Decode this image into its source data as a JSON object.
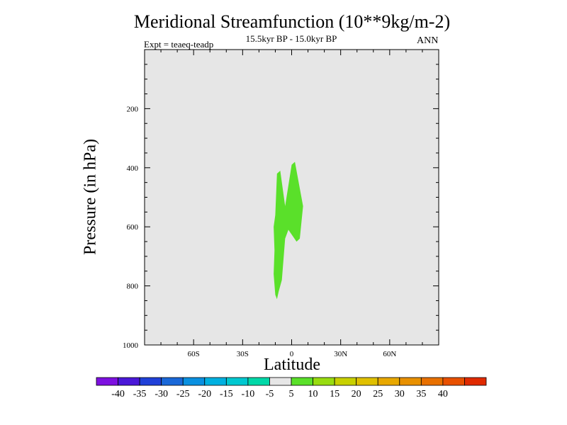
{
  "chart_data": {
    "type": "contour",
    "title": "Meridional Streamfunction (10**9kg/m-2)",
    "subtitle": "15.5kyr BP - 15.0kyr BP",
    "left_annotation": "Expt = teaeq-teadp",
    "right_annotation": "ANN",
    "xlabel": "Latitude",
    "ylabel": "Pressure (in hPa)",
    "xlim": [
      -90,
      90
    ],
    "ylim": [
      1000,
      0
    ],
    "x_tick_labels": [
      {
        "value": -60,
        "label": "60S"
      },
      {
        "value": -30,
        "label": "30S"
      },
      {
        "value": 0,
        "label": "0"
      },
      {
        "value": 30,
        "label": "30N"
      },
      {
        "value": 60,
        "label": "60N"
      }
    ],
    "y_tick_labels": [
      {
        "value": 200,
        "label": "200"
      },
      {
        "value": 400,
        "label": "400"
      },
      {
        "value": 600,
        "label": "600"
      },
      {
        "value": 800,
        "label": "800"
      },
      {
        "value": 1000,
        "label": "1000"
      }
    ],
    "background_color": "#e6e6e6",
    "filled_regions": [
      {
        "level": "5 to 10",
        "color": "#5ae02a",
        "points": [
          [
            -10,
            560
          ],
          [
            -9,
            420
          ],
          [
            -7,
            410
          ],
          [
            -4,
            530
          ],
          [
            0,
            390
          ],
          [
            2,
            380
          ],
          [
            4,
            440
          ],
          [
            7,
            530
          ],
          [
            5,
            640
          ],
          [
            3,
            650
          ],
          [
            -2,
            610
          ],
          [
            -4,
            640
          ],
          [
            -6,
            780
          ],
          [
            -8,
            820
          ],
          [
            -9,
            845
          ],
          [
            -10,
            830
          ],
          [
            -11,
            760
          ],
          [
            -10.5,
            680
          ],
          [
            -11,
            600
          ]
        ]
      }
    ],
    "colorbar": {
      "colors": [
        "#7d10e0",
        "#4a18d8",
        "#2040d8",
        "#1a68d8",
        "#0a90e0",
        "#00b0e0",
        "#00c8d0",
        "#00d8a8",
        "#e6e6e6",
        "#5ae02a",
        "#98dc10",
        "#c8d000",
        "#e0c000",
        "#e8a800",
        "#e89000",
        "#e87000",
        "#e85000",
        "#e02a00"
      ],
      "labels": [
        "-40",
        "-35",
        "-30",
        "-25",
        "-20",
        "-15",
        "-10",
        "-5",
        "5",
        "10",
        "15",
        "20",
        "25",
        "30",
        "35",
        "40"
      ]
    }
  }
}
